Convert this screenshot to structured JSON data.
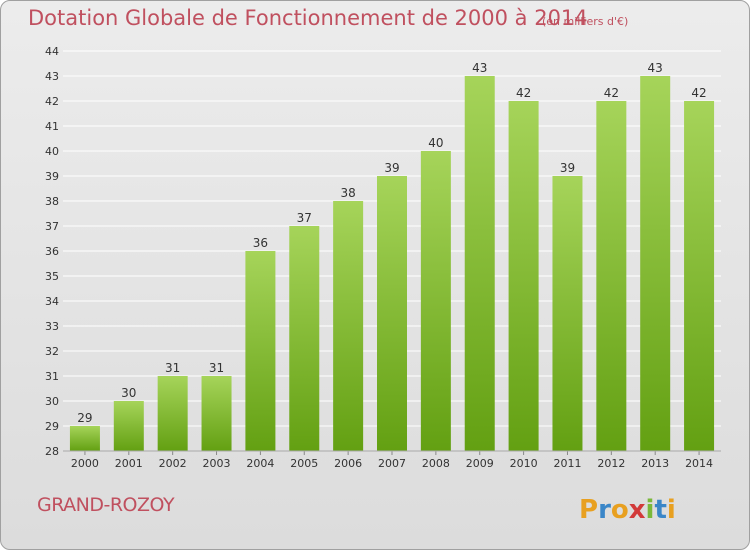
{
  "title": "Dotation Globale de Fonctionnement de 2000 à 2014",
  "subtitle": "(en milliers d'€)",
  "place": "GRAND-ROZOY",
  "logo_text": "Proxiti",
  "colors": {
    "title": "#c0505f",
    "bar_light": "#a6d45a",
    "bar_dark": "#63a012",
    "grid": "#ffffff",
    "text": "#333333"
  },
  "chart_data": {
    "type": "bar",
    "title": "Dotation Globale de Fonctionnement de 2000 à 2014",
    "subtitle": "(en milliers d'€)",
    "xlabel": "",
    "ylabel": "",
    "categories": [
      "2000",
      "2001",
      "2002",
      "2003",
      "2004",
      "2005",
      "2006",
      "2007",
      "2008",
      "2009",
      "2010",
      "2011",
      "2012",
      "2013",
      "2014"
    ],
    "values": [
      29,
      30,
      31,
      31,
      36,
      37,
      38,
      39,
      40,
      43,
      42,
      39,
      42,
      43,
      42
    ],
    "ylim": [
      28,
      44
    ],
    "yticks": [
      28,
      29,
      30,
      31,
      32,
      33,
      34,
      35,
      36,
      37,
      38,
      39,
      40,
      41,
      42,
      43,
      44
    ],
    "grid": true,
    "data_labels": true
  }
}
